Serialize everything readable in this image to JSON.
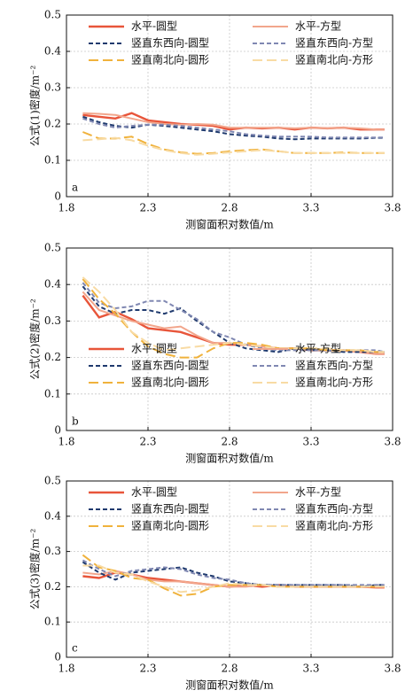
{
  "chart_data": [
    {
      "type": "line",
      "xlabel": "测窗面积对数值/m",
      "ylabel": "公式(1)密度/m⁻²",
      "annotation": "a",
      "xlim": [
        1.8,
        3.8
      ],
      "xticks": [
        1.8,
        2.3,
        2.8,
        3.3,
        3.8
      ],
      "ylim": [
        0,
        0.5
      ],
      "yticks": [
        0,
        0.1,
        0.2,
        0.3,
        0.4,
        0.5
      ],
      "grid": true,
      "legend": "upper",
      "x": [
        1.9,
        2.0,
        2.1,
        2.2,
        2.3,
        2.4,
        2.5,
        2.6,
        2.7,
        2.8,
        2.9,
        3.0,
        3.1,
        3.2,
        3.3,
        3.4,
        3.5,
        3.6,
        3.7,
        3.75
      ],
      "series": [
        {
          "name": "水平-圆型",
          "color": "#e8553a",
          "linestyle": "solid",
          "values": [
            0.225,
            0.22,
            0.215,
            0.23,
            0.21,
            0.205,
            0.2,
            0.198,
            0.195,
            0.185,
            0.19,
            0.188,
            0.19,
            0.185,
            0.19,
            0.188,
            0.19,
            0.185,
            0.185,
            0.185
          ]
        },
        {
          "name": "水平-方型",
          "color": "#f2a68c",
          "linestyle": "solid",
          "values": [
            0.23,
            0.228,
            0.225,
            0.215,
            0.205,
            0.2,
            0.198,
            0.2,
            0.198,
            0.19,
            0.19,
            0.19,
            0.19,
            0.188,
            0.19,
            0.188,
            0.19,
            0.188,
            0.185,
            0.185
          ]
        },
        {
          "name": "竖直东西向-圆型",
          "color": "#1f3a6e",
          "linestyle": "dashed",
          "values": [
            0.22,
            0.205,
            0.195,
            0.19,
            0.198,
            0.195,
            0.19,
            0.185,
            0.18,
            0.172,
            0.168,
            0.165,
            0.16,
            0.158,
            0.16,
            0.16,
            0.16,
            0.16,
            0.162,
            0.162
          ]
        },
        {
          "name": "竖直东西向-方型",
          "color": "#8088b2",
          "linestyle": "dashed",
          "values": [
            0.215,
            0.2,
            0.19,
            0.195,
            0.198,
            0.198,
            0.195,
            0.19,
            0.185,
            0.18,
            0.172,
            0.168,
            0.165,
            0.165,
            0.165,
            0.163,
            0.163,
            0.163,
            0.163,
            0.163
          ]
        },
        {
          "name": "竖直南北向-圆形",
          "color": "#f0b23c",
          "linestyle": "longdash",
          "values": [
            0.178,
            0.16,
            0.16,
            0.165,
            0.145,
            0.13,
            0.122,
            0.118,
            0.12,
            0.125,
            0.128,
            0.13,
            0.125,
            0.12,
            0.12,
            0.12,
            0.122,
            0.12,
            0.12,
            0.12
          ]
        },
        {
          "name": "竖直南北向-方形",
          "color": "#f8dba4",
          "linestyle": "longdash",
          "values": [
            0.155,
            0.158,
            0.162,
            0.155,
            0.14,
            0.128,
            0.12,
            0.115,
            0.118,
            0.122,
            0.125,
            0.128,
            0.125,
            0.12,
            0.12,
            0.12,
            0.12,
            0.12,
            0.12,
            0.12
          ]
        }
      ]
    },
    {
      "type": "line",
      "xlabel": "测窗面积对数值/m",
      "ylabel": "公式(2)密度/m⁻²",
      "annotation": "b",
      "xlim": [
        1.8,
        3.8
      ],
      "xticks": [
        1.8,
        2.3,
        2.8,
        3.3,
        3.8
      ],
      "ylim": [
        0,
        0.5
      ],
      "yticks": [
        0,
        0.1,
        0.2,
        0.3,
        0.4,
        0.5
      ],
      "grid": true,
      "legend": "lower",
      "x": [
        1.9,
        2.0,
        2.1,
        2.2,
        2.3,
        2.4,
        2.5,
        2.6,
        2.7,
        2.8,
        2.9,
        3.0,
        3.1,
        3.2,
        3.3,
        3.4,
        3.5,
        3.6,
        3.7,
        3.75
      ],
      "series": [
        {
          "name": "水平-圆型",
          "color": "#e8553a",
          "linestyle": "solid",
          "values": [
            0.37,
            0.31,
            0.325,
            0.305,
            0.28,
            0.275,
            0.27,
            0.255,
            0.24,
            0.235,
            0.235,
            0.23,
            0.225,
            0.225,
            0.22,
            0.22,
            0.22,
            0.215,
            0.21,
            0.21
          ]
        },
        {
          "name": "水平-方型",
          "color": "#f2a68c",
          "linestyle": "solid",
          "values": [
            0.38,
            0.33,
            0.315,
            0.3,
            0.29,
            0.28,
            0.285,
            0.26,
            0.24,
            0.24,
            0.235,
            0.23,
            0.225,
            0.225,
            0.22,
            0.22,
            0.22,
            0.215,
            0.21,
            0.21
          ]
        },
        {
          "name": "竖直东西向-圆型",
          "color": "#1f3a6e",
          "linestyle": "dashed",
          "values": [
            0.395,
            0.34,
            0.32,
            0.33,
            0.33,
            0.32,
            0.335,
            0.3,
            0.27,
            0.24,
            0.225,
            0.22,
            0.215,
            0.225,
            0.22,
            0.22,
            0.215,
            0.215,
            0.215,
            0.215
          ]
        },
        {
          "name": "竖直东西向-方型",
          "color": "#8088b2",
          "linestyle": "dashed",
          "values": [
            0.405,
            0.35,
            0.335,
            0.34,
            0.355,
            0.355,
            0.33,
            0.305,
            0.27,
            0.255,
            0.235,
            0.225,
            0.22,
            0.22,
            0.22,
            0.22,
            0.22,
            0.22,
            0.22,
            0.215
          ]
        },
        {
          "name": "竖直南北向-圆形",
          "color": "#f0b23c",
          "linestyle": "longdash",
          "values": [
            0.415,
            0.36,
            0.32,
            0.27,
            0.23,
            0.21,
            0.2,
            0.2,
            0.225,
            0.24,
            0.24,
            0.235,
            0.225,
            0.225,
            0.225,
            0.22,
            0.22,
            0.22,
            0.215,
            0.215
          ]
        },
        {
          "name": "竖直南北向-方形",
          "color": "#f8dba4",
          "linestyle": "longdash",
          "values": [
            0.42,
            0.38,
            0.33,
            0.27,
            0.24,
            0.22,
            0.225,
            0.23,
            0.235,
            0.24,
            0.235,
            0.23,
            0.225,
            0.225,
            0.225,
            0.225,
            0.22,
            0.22,
            0.215,
            0.215
          ]
        }
      ]
    },
    {
      "type": "line",
      "xlabel": "测窗面积对数值/m",
      "ylabel": "公式(3)密度/m⁻²",
      "annotation": "c",
      "xlim": [
        1.8,
        3.8
      ],
      "xticks": [
        1.8,
        2.3,
        2.8,
        3.3,
        3.8
      ],
      "ylim": [
        0,
        0.5
      ],
      "yticks": [
        0,
        0.1,
        0.2,
        0.3,
        0.4,
        0.5
      ],
      "grid": true,
      "legend": "upper",
      "x": [
        1.9,
        2.0,
        2.1,
        2.2,
        2.3,
        2.4,
        2.5,
        2.6,
        2.7,
        2.8,
        2.9,
        3.0,
        3.1,
        3.2,
        3.3,
        3.4,
        3.5,
        3.6,
        3.7,
        3.75
      ],
      "series": [
        {
          "name": "水平-圆型",
          "color": "#e8553a",
          "linestyle": "solid",
          "values": [
            0.23,
            0.225,
            0.24,
            0.235,
            0.225,
            0.22,
            0.215,
            0.21,
            0.205,
            0.2,
            0.205,
            0.2,
            0.205,
            0.2,
            0.2,
            0.2,
            0.2,
            0.2,
            0.198,
            0.198
          ]
        },
        {
          "name": "水平-方型",
          "color": "#f2a68c",
          "linestyle": "solid",
          "values": [
            0.24,
            0.235,
            0.245,
            0.235,
            0.22,
            0.215,
            0.215,
            0.21,
            0.205,
            0.2,
            0.2,
            0.205,
            0.2,
            0.2,
            0.2,
            0.2,
            0.2,
            0.2,
            0.2,
            0.2
          ]
        },
        {
          "name": "竖直东西向-圆型",
          "color": "#1f3a6e",
          "linestyle": "dashed",
          "values": [
            0.27,
            0.24,
            0.22,
            0.24,
            0.245,
            0.25,
            0.255,
            0.24,
            0.23,
            0.215,
            0.21,
            0.205,
            0.205,
            0.205,
            0.205,
            0.205,
            0.205,
            0.2,
            0.205,
            0.205
          ]
        },
        {
          "name": "竖直东西向-方型",
          "color": "#8088b2",
          "linestyle": "dashed",
          "values": [
            0.275,
            0.25,
            0.23,
            0.245,
            0.25,
            0.255,
            0.25,
            0.235,
            0.225,
            0.22,
            0.21,
            0.205,
            0.205,
            0.205,
            0.205,
            0.205,
            0.205,
            0.205,
            0.205,
            0.205
          ]
        },
        {
          "name": "竖直南北向-圆形",
          "color": "#f0b23c",
          "linestyle": "longdash",
          "values": [
            0.29,
            0.255,
            0.245,
            0.225,
            0.22,
            0.195,
            0.175,
            0.18,
            0.2,
            0.205,
            0.205,
            0.205,
            0.2,
            0.2,
            0.2,
            0.2,
            0.2,
            0.2,
            0.2,
            0.2
          ]
        },
        {
          "name": "竖直南北向-方形",
          "color": "#f8dba4",
          "linestyle": "longdash",
          "values": [
            0.26,
            0.26,
            0.24,
            0.235,
            0.215,
            0.2,
            0.185,
            0.19,
            0.2,
            0.21,
            0.205,
            0.205,
            0.2,
            0.2,
            0.2,
            0.2,
            0.2,
            0.2,
            0.2,
            0.2
          ]
        }
      ]
    }
  ]
}
